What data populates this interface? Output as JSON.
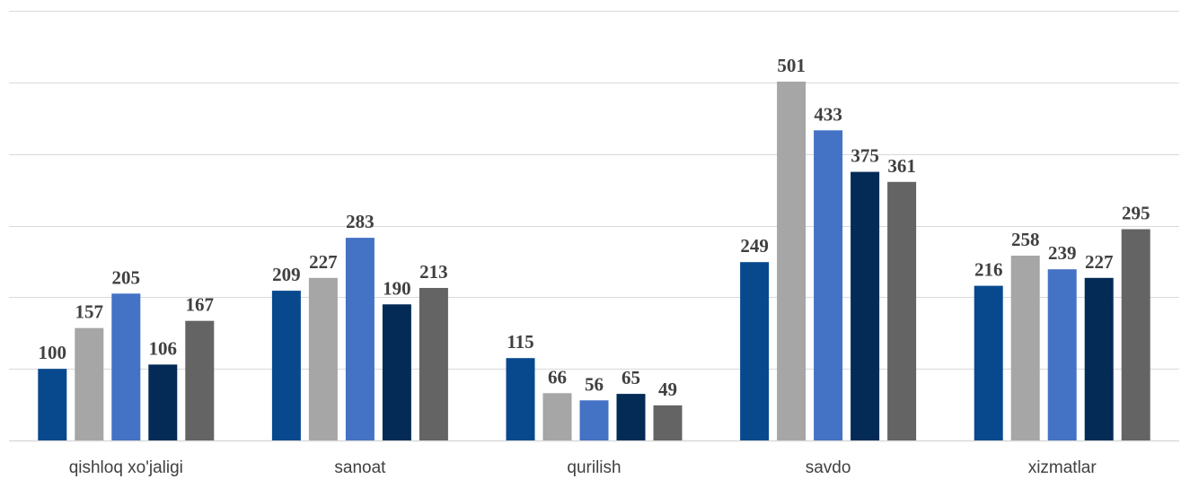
{
  "chart_data": {
    "type": "bar",
    "categories": [
      "qishloq xo'jaligi",
      "sanoat",
      "qurilish",
      "savdo",
      "xizmatlar"
    ],
    "series": [
      {
        "values": [
          100,
          209,
          115,
          249,
          216
        ],
        "color": "#08498e"
      },
      {
        "values": [
          157,
          227,
          66,
          501,
          258
        ],
        "color": "#a6a6a6"
      },
      {
        "values": [
          205,
          283,
          56,
          433,
          239
        ],
        "color": "#4472c4"
      },
      {
        "values": [
          106,
          190,
          65,
          375,
          227
        ],
        "color": "#032b56"
      },
      {
        "values": [
          167,
          213,
          49,
          361,
          295
        ],
        "color": "#646464"
      }
    ],
    "title": "",
    "xlabel": "",
    "ylabel": "",
    "ylim": [
      0,
      600
    ],
    "grid": true,
    "legend": "none",
    "axis_tick_labels_visible": false
  }
}
